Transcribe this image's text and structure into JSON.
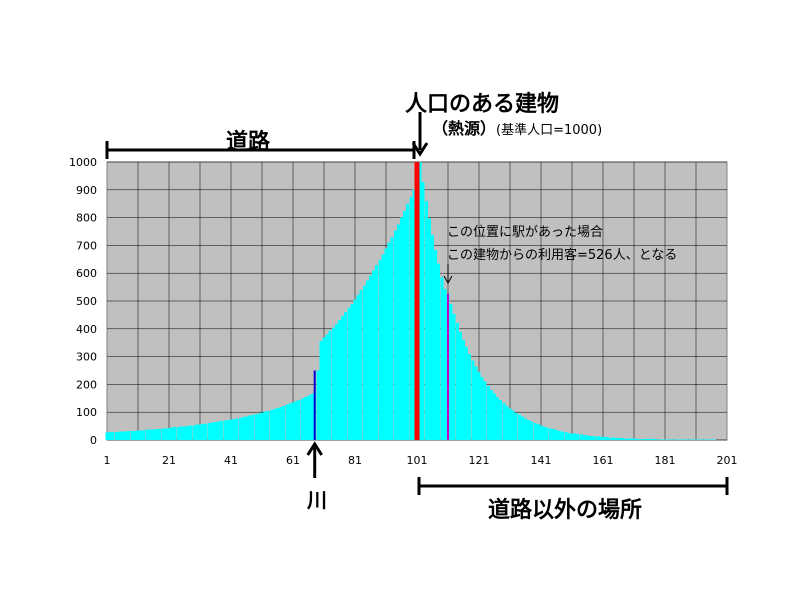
{
  "chart_data": {
    "type": "bar",
    "x": {
      "min": 1,
      "max": 201,
      "ticks": [
        1,
        21,
        41,
        61,
        81,
        101,
        121,
        141,
        161,
        181,
        201
      ]
    },
    "y": {
      "min": 0,
      "max": 1000,
      "ticks": [
        0,
        100,
        200,
        300,
        400,
        500,
        600,
        700,
        800,
        900,
        1000
      ]
    },
    "grid": true,
    "background_color": "#c0c0c0",
    "bar_color": "#00ffff",
    "source_x": 101,
    "river_x": 68,
    "station_x": 111,
    "values": [
      27,
      28,
      28,
      29,
      30,
      30,
      31,
      32,
      33,
      33,
      34,
      35,
      36,
      37,
      38,
      38,
      39,
      40,
      41,
      42,
      43,
      45,
      46,
      47,
      48,
      49,
      51,
      52,
      53,
      55,
      56,
      58,
      59,
      61,
      63,
      64,
      66,
      68,
      70,
      72,
      74,
      76,
      78,
      80,
      83,
      85,
      88,
      90,
      93,
      96,
      99,
      102,
      105,
      108,
      112,
      115,
      119,
      123,
      127,
      131,
      135,
      140,
      144,
      149,
      154,
      160,
      165,
      171,
      250,
      356,
      368,
      380,
      393,
      405,
      418,
      432,
      446,
      460,
      475,
      490,
      506,
      522,
      539,
      556,
      574,
      592,
      610,
      629,
      648,
      668,
      689,
      710,
      731,
      753,
      776,
      800,
      824,
      849,
      875,
      901,
      928,
      1000,
      928,
      860,
      797,
      738,
      684,
      634,
      587,
      544,
      526,
      490,
      454,
      420,
      389,
      360,
      334,
      309,
      286,
      265,
      245,
      227,
      210,
      195,
      180,
      167,
      155,
      143,
      133,
      123,
      114,
      106,
      98,
      91,
      84,
      78,
      72,
      67,
      62,
      57,
      53,
      49,
      45,
      42,
      39,
      36,
      33,
      31,
      29,
      26,
      24,
      23,
      21,
      19,
      18,
      17,
      15,
      14,
      13,
      12,
      11,
      10,
      9,
      9,
      8,
      7,
      7,
      6,
      6,
      5,
      5,
      4,
      4,
      4,
      3,
      3,
      3,
      3,
      2,
      2,
      2,
      2,
      2,
      2,
      1,
      1,
      1,
      1,
      1,
      1,
      1,
      1,
      1,
      1,
      1,
      1,
      1,
      0,
      0,
      0,
      0,
      0,
      0
    ],
    "markers": [
      {
        "x": 68,
        "value": 250,
        "color": "#0000cc"
      },
      {
        "x": 101,
        "value": 1000,
        "color": "#ff0000"
      },
      {
        "x": 111,
        "value": 526,
        "color": "#cc00cc"
      }
    ],
    "title": "人口のある建物",
    "subtitle": "（熱源）",
    "subtitle_note": "(基準人口=1000)",
    "region_left_label": "道路",
    "region_right_label": "道路以外の場所",
    "river_label": "川",
    "annotation": [
      "この位置に駅があった場合",
      "この建物からの利用客=526人、となる"
    ]
  }
}
